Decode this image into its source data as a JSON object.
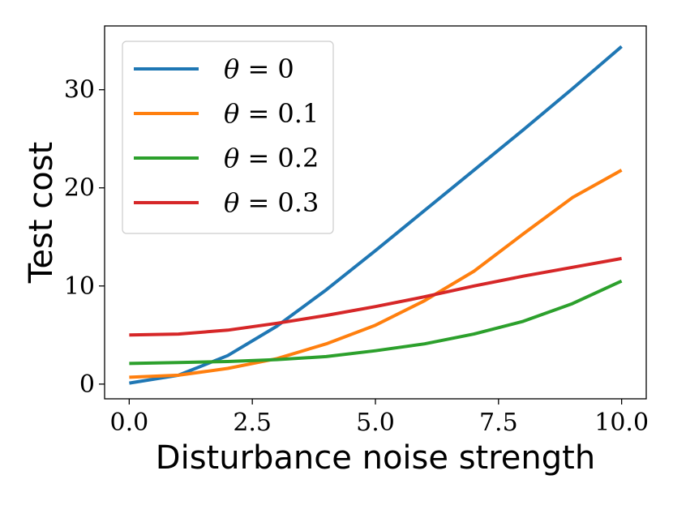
{
  "chart_data": {
    "type": "line",
    "title": "",
    "xlabel": "Disturbance noise strength",
    "ylabel": "Test cost",
    "xlim": [
      -0.5,
      10.5
    ],
    "ylim": [
      -1.5,
      36.5
    ],
    "xticks": [
      0.0,
      2.5,
      5.0,
      7.5,
      10.0
    ],
    "xtick_labels": [
      "0.0",
      "2.5",
      "5.0",
      "7.5",
      "10.0"
    ],
    "yticks": [
      0,
      10,
      20,
      30
    ],
    "ytick_labels": [
      "0",
      "10",
      "20",
      "30"
    ],
    "grid": false,
    "legend_position": "top-left",
    "x": [
      0,
      1,
      2,
      3,
      4,
      5,
      6,
      7,
      8,
      9,
      10
    ],
    "series": [
      {
        "name": "θ = 0",
        "legend_var": "θ",
        "legend_rest": " = 0",
        "color": "#1f77b4",
        "values": [
          0.1,
          0.9,
          2.9,
          5.9,
          9.6,
          13.6,
          17.7,
          21.8,
          25.9,
          30.1,
          34.4
        ]
      },
      {
        "name": "θ = 0.1",
        "legend_var": "θ",
        "legend_rest": " = 0.1",
        "color": "#ff7f0e",
        "values": [
          0.7,
          0.9,
          1.6,
          2.6,
          4.1,
          6.0,
          8.5,
          11.5,
          15.3,
          19.0,
          21.8
        ]
      },
      {
        "name": "θ = 0.2",
        "legend_var": "θ",
        "legend_rest": " = 0.2",
        "color": "#2ca02c",
        "values": [
          2.1,
          2.2,
          2.3,
          2.5,
          2.8,
          3.4,
          4.1,
          5.1,
          6.4,
          8.2,
          10.5
        ]
      },
      {
        "name": "θ = 0.3",
        "legend_var": "θ",
        "legend_rest": " = 0.3",
        "color": "#d62728",
        "values": [
          5.0,
          5.1,
          5.5,
          6.2,
          7.0,
          7.9,
          8.9,
          10.0,
          11.0,
          11.9,
          12.8
        ]
      }
    ]
  }
}
